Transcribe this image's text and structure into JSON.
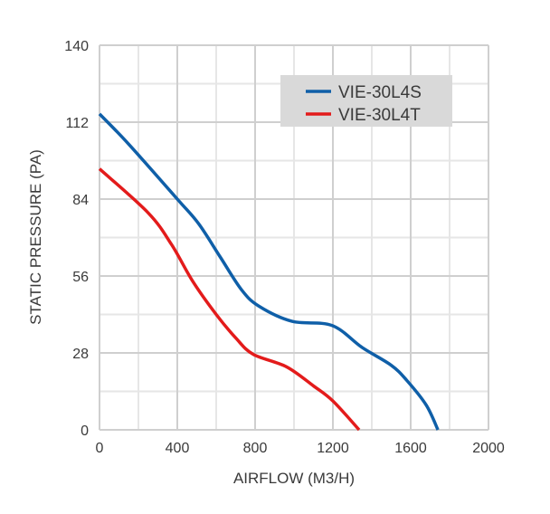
{
  "chart_data": {
    "type": "line",
    "title": "",
    "xlabel": "AIRFLOW (M3/H)",
    "ylabel": "STATIC PRESSURE (PA)",
    "xlim": [
      0,
      2000
    ],
    "ylim": [
      0,
      140
    ],
    "xticks": [
      0,
      400,
      800,
      1200,
      1600,
      2000
    ],
    "yticks": [
      0,
      28,
      56,
      84,
      112,
      140
    ],
    "grid": true,
    "legend_position": "top-right",
    "series": [
      {
        "name": "VIE-30L4S",
        "color": "#0f5fa8",
        "x": [
          0,
          150,
          400,
          510,
          620,
          730,
          820,
          990,
          1195,
          1350,
          1500,
          1580,
          1680,
          1740
        ],
        "y": [
          115,
          104,
          84,
          75,
          63,
          51,
          45,
          39.5,
          38,
          30,
          23.5,
          18,
          9,
          0
        ]
      },
      {
        "name": "VIE-30L4T",
        "color": "#e31b1b",
        "x": [
          0,
          250,
          370,
          480,
          600,
          700,
          790,
          960,
          1100,
          1200,
          1335
        ],
        "y": [
          95,
          79,
          67.5,
          54,
          42,
          33.5,
          27.5,
          23,
          16,
          10.5,
          0
        ]
      }
    ]
  }
}
